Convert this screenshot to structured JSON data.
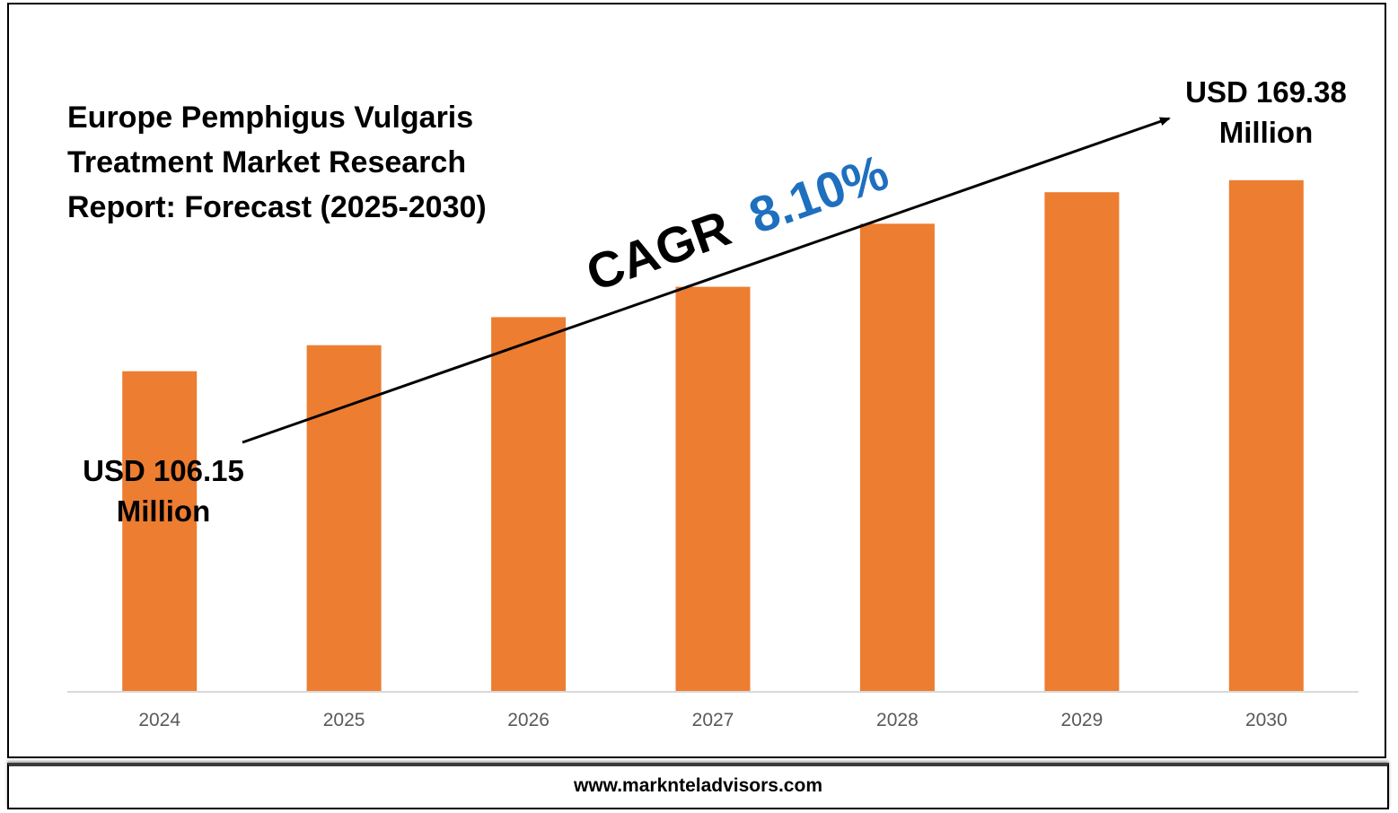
{
  "chart_data": {
    "type": "bar",
    "title_lines": [
      "Europe Pemphigus Vulgaris",
      "Treatment Market Research",
      "Report: Forecast (2025-2030)"
    ],
    "categories": [
      "2024",
      "2025",
      "2026",
      "2027",
      "2028",
      "2029",
      "2030"
    ],
    "values": [
      106.15,
      114.75,
      124.05,
      134.1,
      155.0,
      165.4,
      169.38
    ],
    "unit": "USD Million",
    "ylim": [
      0,
      183
    ],
    "grid": false,
    "legend": "none",
    "start_label": [
      "USD 106.15",
      "Million"
    ],
    "end_label": [
      "USD 169.38",
      "Million"
    ],
    "cagr": {
      "prefix": "CAGR",
      "value": "8.10%"
    },
    "colors": {
      "bar": "#ED7D31",
      "cagr_value": "#1F6FBF",
      "axis": "#D9D9D9",
      "tick": "#595959"
    }
  },
  "footer": {
    "url": "www.marknteladvisors.com"
  }
}
